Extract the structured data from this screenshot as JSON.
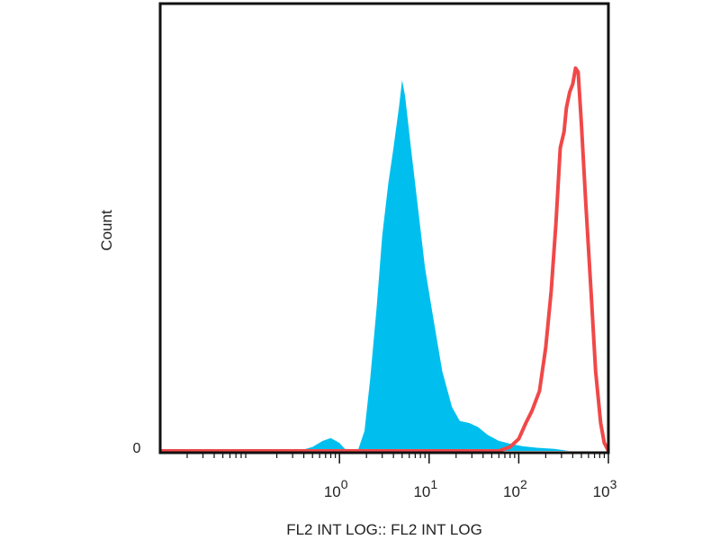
{
  "chart_data": {
    "type": "area",
    "xlabel": "FL2 INT LOG:: FL2 INT LOG",
    "ylabel": "Count",
    "xscale": "log",
    "xlim": [
      0.01,
      1000
    ],
    "ylim": [
      0,
      1.0
    ],
    "x_tick_labels": [
      {
        "base": "10",
        "exp": "0",
        "value": 1
      },
      {
        "base": "10",
        "exp": "1",
        "value": 10
      },
      {
        "base": "10",
        "exp": "2",
        "value": 100
      },
      {
        "base": "10",
        "exp": "3",
        "value": 1000
      }
    ],
    "y_tick_labels": [
      {
        "label": "0",
        "value": 0
      }
    ],
    "grid": false,
    "legend": "none",
    "series": [
      {
        "color": "#00bfee",
        "style": "filled",
        "points": [
          [
            0.35,
            0.0
          ],
          [
            0.5,
            0.01
          ],
          [
            0.65,
            0.025
          ],
          [
            0.8,
            0.032
          ],
          [
            1.0,
            0.02
          ],
          [
            1.15,
            0.005
          ],
          [
            1.6,
            0.0
          ],
          [
            1.9,
            0.05
          ],
          [
            2.2,
            0.18
          ],
          [
            2.6,
            0.36
          ],
          [
            3.0,
            0.54
          ],
          [
            3.5,
            0.67
          ],
          [
            4.0,
            0.76
          ],
          [
            4.6,
            0.86
          ],
          [
            5.0,
            0.93
          ],
          [
            5.4,
            0.89
          ],
          [
            6.2,
            0.77
          ],
          [
            7.5,
            0.61
          ],
          [
            9.0,
            0.46
          ],
          [
            11.0,
            0.34
          ],
          [
            14.0,
            0.2
          ],
          [
            18.0,
            0.11
          ],
          [
            22.0,
            0.075
          ],
          [
            28.0,
            0.07
          ],
          [
            35.0,
            0.06
          ],
          [
            45.0,
            0.04
          ],
          [
            60.0,
            0.025
          ],
          [
            80.0,
            0.018
          ],
          [
            110.0,
            0.012
          ],
          [
            160.0,
            0.008
          ],
          [
            250.0,
            0.005
          ],
          [
            360.0,
            0.0
          ]
        ]
      },
      {
        "color": "#f04848",
        "style": "line",
        "points": [
          [
            0.01,
            0.0
          ],
          [
            60.0,
            0.0
          ],
          [
            80.0,
            0.01
          ],
          [
            100.0,
            0.03
          ],
          [
            120.0,
            0.07
          ],
          [
            140.0,
            0.1
          ],
          [
            170.0,
            0.15
          ],
          [
            200.0,
            0.26
          ],
          [
            230.0,
            0.4
          ],
          [
            260.0,
            0.57
          ],
          [
            290.0,
            0.76
          ],
          [
            320.0,
            0.8
          ],
          [
            340.0,
            0.86
          ],
          [
            370.0,
            0.9
          ],
          [
            400.0,
            0.92
          ],
          [
            430.0,
            0.96
          ],
          [
            460.0,
            0.95
          ],
          [
            500.0,
            0.82
          ],
          [
            560.0,
            0.62
          ],
          [
            640.0,
            0.4
          ],
          [
            720.0,
            0.2
          ],
          [
            820.0,
            0.07
          ],
          [
            900.0,
            0.02
          ],
          [
            1000.0,
            0.0
          ]
        ]
      }
    ]
  }
}
